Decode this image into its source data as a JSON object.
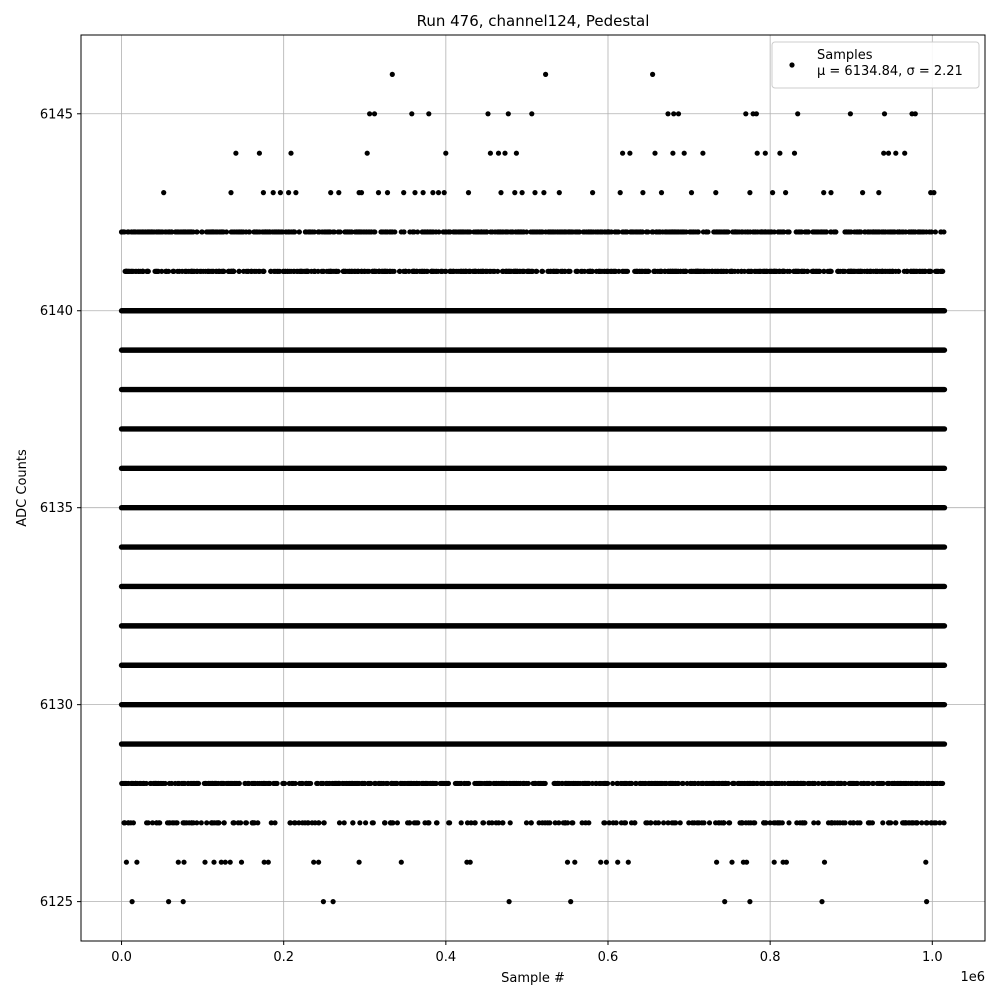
{
  "chart_data": {
    "type": "scatter",
    "title": "Run 476, channel124, Pedestal",
    "xlabel": "Sample #",
    "ylabel": "ADC Counts",
    "x_offset_label": "1e6",
    "xlim": [
      -50000,
      1065000
    ],
    "ylim": [
      6124,
      6147
    ],
    "x_ticks": [
      0,
      200000,
      400000,
      600000,
      800000,
      1000000
    ],
    "x_tick_labels": [
      "0.0",
      "0.2",
      "0.4",
      "0.6",
      "0.8",
      "1.0"
    ],
    "y_ticks": [
      6125,
      6130,
      6135,
      6140,
      6145
    ],
    "y_tick_labels": [
      "6125",
      "6130",
      "6135",
      "6140",
      "6145"
    ],
    "grid": true,
    "legend": {
      "placement": "top-right",
      "label": "Samples",
      "stats": "μ = 6134.84, σ = 2.21"
    },
    "marker_color": "#000000",
    "sample_range": [
      0,
      1015000
    ],
    "series": [
      {
        "levels": [
          {
            "y": 6129,
            "density": "continuous"
          },
          {
            "y": 6130,
            "density": "continuous"
          },
          {
            "y": 6131,
            "density": "continuous"
          },
          {
            "y": 6132,
            "density": "continuous"
          },
          {
            "y": 6133,
            "density": "continuous"
          },
          {
            "y": 6134,
            "density": "continuous"
          },
          {
            "y": 6135,
            "density": "continuous"
          },
          {
            "y": 6136,
            "density": "continuous"
          },
          {
            "y": 6137,
            "density": "continuous"
          },
          {
            "y": 6138,
            "density": "continuous"
          },
          {
            "y": 6139,
            "density": "continuous"
          },
          {
            "y": 6140,
            "density": "continuous"
          },
          {
            "y": 6141,
            "density": "dense"
          },
          {
            "y": 6142,
            "density": "dense"
          },
          {
            "y": 6128,
            "density": "dense"
          },
          {
            "y": 6127,
            "density": "medium"
          }
        ],
        "sparse_points": [
          [
            0,
            6142
          ],
          [
            52000,
            6143
          ],
          [
            135000,
            6143
          ],
          [
            141000,
            6144
          ],
          [
            170000,
            6144
          ],
          [
            175000,
            6143
          ],
          [
            187000,
            6143
          ],
          [
            196000,
            6143
          ],
          [
            206000,
            6143
          ],
          [
            209000,
            6144
          ],
          [
            215000,
            6143
          ],
          [
            258000,
            6143
          ],
          [
            268000,
            6143
          ],
          [
            293000,
            6143
          ],
          [
            296000,
            6143
          ],
          [
            303000,
            6144
          ],
          [
            306000,
            6145
          ],
          [
            312000,
            6145
          ],
          [
            317000,
            6143
          ],
          [
            328000,
            6143
          ],
          [
            334000,
            6146
          ],
          [
            348000,
            6143
          ],
          [
            358000,
            6145
          ],
          [
            362000,
            6143
          ],
          [
            372000,
            6143
          ],
          [
            379000,
            6145
          ],
          [
            384000,
            6143
          ],
          [
            391000,
            6143
          ],
          [
            398000,
            6143
          ],
          [
            400000,
            6144
          ],
          [
            428000,
            6143
          ],
          [
            452000,
            6145
          ],
          [
            455000,
            6144
          ],
          [
            465000,
            6144
          ],
          [
            468000,
            6143
          ],
          [
            473000,
            6144
          ],
          [
            477000,
            6145
          ],
          [
            485000,
            6143
          ],
          [
            487000,
            6144
          ],
          [
            494000,
            6143
          ],
          [
            506000,
            6145
          ],
          [
            510000,
            6143
          ],
          [
            521000,
            6143
          ],
          [
            523000,
            6146
          ],
          [
            540000,
            6143
          ],
          [
            581000,
            6143
          ],
          [
            615000,
            6143
          ],
          [
            618000,
            6144
          ],
          [
            627000,
            6144
          ],
          [
            643000,
            6143
          ],
          [
            655000,
            6146
          ],
          [
            658000,
            6144
          ],
          [
            666000,
            6143
          ],
          [
            674000,
            6145
          ],
          [
            680000,
            6144
          ],
          [
            681000,
            6145
          ],
          [
            687000,
            6145
          ],
          [
            694000,
            6144
          ],
          [
            703000,
            6143
          ],
          [
            717000,
            6144
          ],
          [
            733000,
            6143
          ],
          [
            770000,
            6145
          ],
          [
            775000,
            6143
          ],
          [
            779000,
            6145
          ],
          [
            783000,
            6145
          ],
          [
            784000,
            6144
          ],
          [
            794000,
            6144
          ],
          [
            803000,
            6143
          ],
          [
            812000,
            6144
          ],
          [
            819000,
            6143
          ],
          [
            830000,
            6144
          ],
          [
            834000,
            6145
          ],
          [
            866000,
            6143
          ],
          [
            875000,
            6143
          ],
          [
            899000,
            6145
          ],
          [
            914000,
            6143
          ],
          [
            934000,
            6143
          ],
          [
            940000,
            6144
          ],
          [
            941000,
            6145
          ],
          [
            946000,
            6144
          ],
          [
            955000,
            6144
          ],
          [
            966000,
            6144
          ],
          [
            975000,
            6145
          ],
          [
            979000,
            6145
          ],
          [
            998000,
            6143
          ],
          [
            1002000,
            6143
          ],
          [
            6000,
            6126
          ],
          [
            19000,
            6126
          ],
          [
            70000,
            6126
          ],
          [
            77000,
            6126
          ],
          [
            103000,
            6126
          ],
          [
            114000,
            6126
          ],
          [
            123000,
            6126
          ],
          [
            128000,
            6126
          ],
          [
            134000,
            6126
          ],
          [
            148000,
            6126
          ],
          [
            176000,
            6126
          ],
          [
            181000,
            6126
          ],
          [
            237000,
            6126
          ],
          [
            243000,
            6126
          ],
          [
            293000,
            6126
          ],
          [
            345000,
            6126
          ],
          [
            426000,
            6126
          ],
          [
            430000,
            6126
          ],
          [
            550000,
            6126
          ],
          [
            559000,
            6126
          ],
          [
            591000,
            6126
          ],
          [
            598000,
            6126
          ],
          [
            612000,
            6126
          ],
          [
            625000,
            6126
          ],
          [
            734000,
            6126
          ],
          [
            753000,
            6126
          ],
          [
            767000,
            6126
          ],
          [
            771000,
            6126
          ],
          [
            805000,
            6126
          ],
          [
            816000,
            6126
          ],
          [
            820000,
            6126
          ],
          [
            867000,
            6126
          ],
          [
            992000,
            6126
          ],
          [
            13000,
            6125
          ],
          [
            58000,
            6125
          ],
          [
            76000,
            6125
          ],
          [
            249000,
            6125
          ],
          [
            261000,
            6125
          ],
          [
            478000,
            6125
          ],
          [
            554000,
            6125
          ],
          [
            744000,
            6125
          ],
          [
            775000,
            6125
          ],
          [
            864000,
            6125
          ],
          [
            993000,
            6125
          ]
        ]
      }
    ]
  }
}
